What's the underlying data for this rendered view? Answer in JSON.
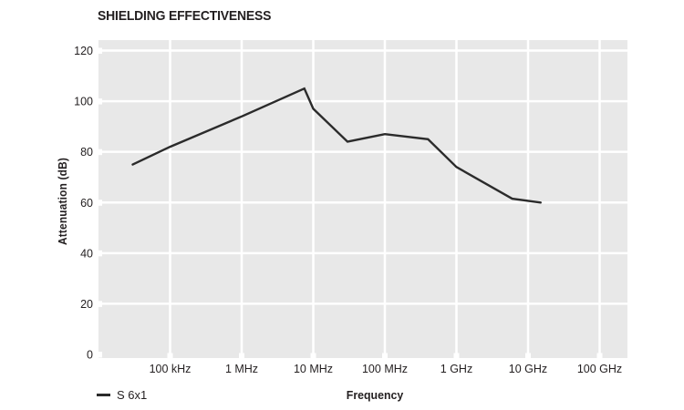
{
  "chart_data": {
    "type": "line",
    "title": "SHIELDING EFFECTIVENESS",
    "xlabel": "Frequency",
    "ylabel": "Attenuation (dB)",
    "x_scale": "log",
    "grid": true,
    "legend_position": "bottom-left",
    "ylim": [
      0,
      124
    ],
    "xlim_hz": [
      10000,
      240000000000
    ],
    "y_ticks": [
      {
        "label": "120",
        "value": 120
      },
      {
        "label": "100",
        "value": 100
      },
      {
        "label": "80",
        "value": 80
      },
      {
        "label": "60",
        "value": 60
      },
      {
        "label": "40",
        "value": 40
      },
      {
        "label": "20",
        "value": 20
      },
      {
        "label": "0",
        "value": 0
      }
    ],
    "x_ticks": [
      {
        "label": "100 kHz",
        "freq_hz": 100000
      },
      {
        "label": "1 MHz",
        "freq_hz": 1000000
      },
      {
        "label": "10 MHz",
        "freq_hz": 10000000
      },
      {
        "label": "100 MHz",
        "freq_hz": 100000000
      },
      {
        "label": "1 GHz",
        "freq_hz": 1000000000
      },
      {
        "label": "10 GHz",
        "freq_hz": 10000000000
      },
      {
        "label": "100 GHz",
        "freq_hz": 100000000000
      }
    ],
    "series": [
      {
        "name": "S 6x1",
        "points_hz_db": [
          [
            30000,
            75
          ],
          [
            100000,
            82
          ],
          [
            1000000,
            94
          ],
          [
            7500000,
            105
          ],
          [
            10000000,
            97
          ],
          [
            30000000,
            84
          ],
          [
            100000000,
            87
          ],
          [
            400000000,
            85
          ],
          [
            1000000000,
            74
          ],
          [
            6000000000,
            61.5
          ],
          [
            15000000000,
            60
          ]
        ]
      }
    ]
  },
  "colors": {
    "page_background": "#ffffff",
    "plot_background": "#e8e8e8",
    "gridline": "#ffffff",
    "series_line": "#2b2b2b",
    "text": "#231f20"
  }
}
